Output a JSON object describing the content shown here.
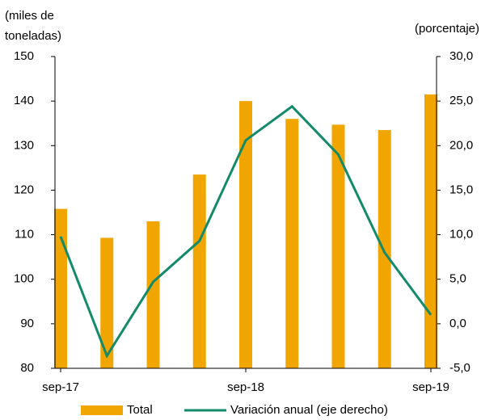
{
  "chart_data": {
    "type": "bar_line",
    "ylabel": [
      "(miles de",
      "toneladas)"
    ],
    "y2label": "(porcentaje)",
    "categories": [
      "sep-17",
      null,
      null,
      null,
      "sep-18",
      null,
      null,
      null,
      "sep-19"
    ],
    "series": [
      {
        "name": "Total",
        "type": "bar",
        "color": "#f0a500",
        "values": [
          115.8,
          109.3,
          113,
          123.5,
          140,
          136,
          134.7,
          133.5,
          141.5
        ]
      },
      {
        "name": "Variación anual (eje derecho)",
        "type": "line",
        "axis": "y2",
        "color": "#138a6a",
        "values": [
          9.8,
          -3.6,
          4.7,
          9.3,
          20.6,
          24.4,
          19.0,
          8.0,
          1.0
        ]
      }
    ],
    "ylim": [
      80,
      150
    ],
    "yticks": [
      80,
      90,
      100,
      110,
      120,
      130,
      140,
      150
    ],
    "y2lim": [
      -5,
      30
    ],
    "y2ticks": [
      {
        "value": -5,
        "label": "-5,0"
      },
      {
        "value": 0,
        "label": "0,0"
      },
      {
        "value": 5,
        "label": "5,0"
      },
      {
        "value": 10,
        "label": "10,0"
      },
      {
        "value": 15,
        "label": "15,0"
      },
      {
        "value": 20,
        "label": "20,0"
      },
      {
        "value": 25,
        "label": "25,0"
      },
      {
        "value": 30,
        "label": "30,0"
      }
    ],
    "legend": "bottom"
  }
}
